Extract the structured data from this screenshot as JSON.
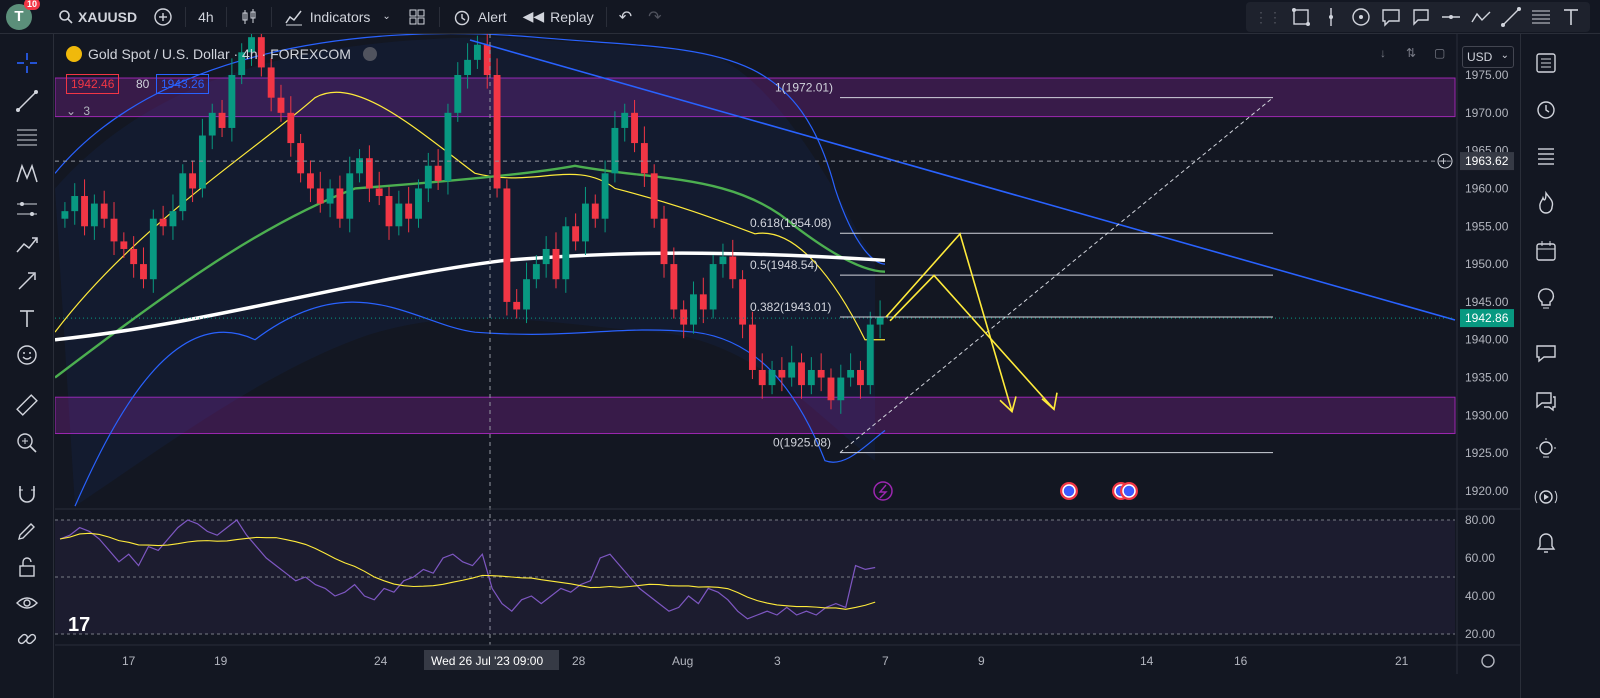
{
  "toolbar": {
    "notifications": "10",
    "avatar_letter": "T",
    "symbol": "XAUUSD",
    "interval": "4h",
    "indicators": "Indicators",
    "alert": "Alert",
    "replay": "Replay"
  },
  "legend": {
    "title": "Gold Spot / U.S. Dollar · 4h · FOREXCOM",
    "bid": "1942.46",
    "spread": "80",
    "ask": "1943.26",
    "indicator_count": "3"
  },
  "currency": "USD",
  "price_axis": {
    "labels": [
      "1975.00",
      "1970.00",
      "1965.00",
      "1960.00",
      "1955.00",
      "1950.00",
      "1945.00",
      "1940.00",
      "1935.00",
      "1930.00",
      "1925.00",
      "1920.00"
    ],
    "crosshair_price": "1963.62",
    "last_price": "1942.86",
    "last_price_color": "#089981"
  },
  "rsi_axis": {
    "labels": [
      "80.00",
      "60.00",
      "40.00",
      "20.00"
    ]
  },
  "time_axis": {
    "labels": [
      "17",
      "19",
      "24",
      "28",
      "Aug",
      "3",
      "7",
      "9",
      "14",
      "16",
      "21"
    ],
    "crosshair_time": "Wed 26 Jul '23   09:00"
  },
  "fib_levels": [
    {
      "label": "1(1972.01)",
      "price": 1972.01
    },
    {
      "label": "0.618(1954.08)",
      "price": 1954.08
    },
    {
      "label": "0.5(1948.54)",
      "price": 1948.54
    },
    {
      "label": "0.382(1943.01)",
      "price": 1943.01
    },
    {
      "label": "0(1925.08)",
      "price": 1925.08
    }
  ],
  "zones": [
    {
      "from": 1969.5,
      "to": 1974.6
    },
    {
      "from": 1927.6,
      "to": 1932.4
    }
  ],
  "colors": {
    "up": "#089981",
    "down": "#f23645",
    "trendline": "#2962ff",
    "zone": "#9c27b0",
    "arrow": "#ffeb3b",
    "rsi": "#7e57c2"
  },
  "tv_logo": "17"
}
